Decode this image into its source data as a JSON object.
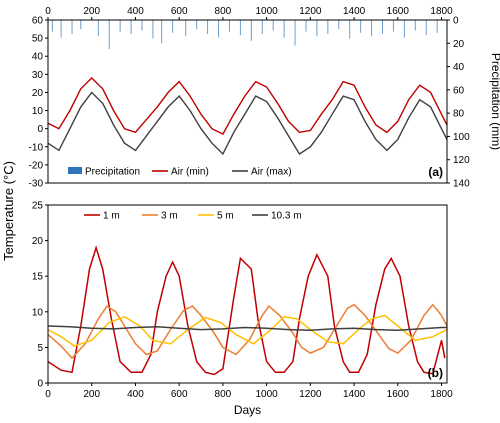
{
  "chart_data": [
    {
      "type": "line",
      "panel_label": "(a)",
      "xlim": [
        0,
        1825
      ],
      "ylim_left": [
        -30,
        60
      ],
      "ylim_right_inverted": [
        0,
        140
      ],
      "x_ticks": [
        0,
        200,
        400,
        600,
        800,
        1000,
        1200,
        1400,
        1600,
        1800
      ],
      "y_ticks_left": [
        -30,
        -20,
        -10,
        0,
        10,
        20,
        30,
        40,
        50,
        60
      ],
      "y_ticks_right": [
        0,
        20,
        40,
        60,
        80,
        100,
        120,
        140
      ],
      "ylabel_right": "Precipitation (mm)",
      "legend": [
        "Precipitation",
        "Air (min)",
        "Air (max)"
      ],
      "legend_position": "bottom-left",
      "series": [
        {
          "name": "Air (min)",
          "color": "#c00000",
          "x": [
            0,
            50,
            100,
            150,
            200,
            250,
            300,
            350,
            400,
            450,
            500,
            550,
            600,
            650,
            700,
            750,
            800,
            850,
            900,
            950,
            1000,
            1050,
            1100,
            1150,
            1200,
            1250,
            1300,
            1350,
            1400,
            1450,
            1500,
            1550,
            1600,
            1650,
            1700,
            1750,
            1800,
            1825
          ],
          "y": [
            3,
            0,
            10,
            22,
            28,
            22,
            10,
            0,
            -2,
            5,
            12,
            20,
            26,
            18,
            8,
            0,
            -3,
            8,
            18,
            26,
            23,
            14,
            4,
            -2,
            -1,
            8,
            16,
            26,
            24,
            12,
            2,
            -2,
            4,
            16,
            24,
            20,
            8,
            2
          ]
        },
        {
          "name": "Air (max)",
          "color": "#404040",
          "x": [
            0,
            50,
            100,
            150,
            200,
            250,
            300,
            350,
            400,
            450,
            500,
            550,
            600,
            650,
            700,
            750,
            800,
            850,
            900,
            950,
            1000,
            1050,
            1100,
            1150,
            1200,
            1250,
            1300,
            1350,
            1400,
            1450,
            1500,
            1550,
            1600,
            1650,
            1700,
            1750,
            1800,
            1825
          ],
          "y": [
            -8,
            -12,
            0,
            12,
            20,
            14,
            2,
            -8,
            -12,
            -4,
            4,
            12,
            18,
            10,
            0,
            -8,
            -14,
            -2,
            8,
            18,
            15,
            6,
            -4,
            -14,
            -10,
            -2,
            8,
            18,
            16,
            4,
            -6,
            -12,
            -6,
            6,
            16,
            12,
            0,
            -6
          ]
        },
        {
          "name": "Precipitation",
          "color": "#2e75b6",
          "type": "bar",
          "axis": "right",
          "x": [
            20,
            60,
            110,
            150,
            230,
            280,
            330,
            380,
            430,
            480,
            520,
            570,
            630,
            680,
            730,
            780,
            830,
            880,
            930,
            980,
            1030,
            1080,
            1130,
            1180,
            1230,
            1280,
            1330,
            1380,
            1430,
            1480,
            1530,
            1580,
            1630,
            1680,
            1730,
            1780
          ],
          "y": [
            10,
            15,
            12,
            8,
            14,
            25,
            10,
            12,
            9,
            16,
            20,
            11,
            14,
            8,
            12,
            15,
            10,
            13,
            18,
            12,
            9,
            15,
            22,
            10,
            14,
            12,
            8,
            16,
            11,
            14,
            12,
            10,
            15,
            9,
            13,
            11
          ]
        }
      ]
    },
    {
      "type": "line",
      "panel_label": "(b)",
      "xlim": [
        0,
        1825
      ],
      "ylim": [
        0,
        25
      ],
      "x_ticks": [
        0,
        200,
        400,
        600,
        800,
        1000,
        1200,
        1400,
        1600,
        1800
      ],
      "y_ticks": [
        0,
        5,
        10,
        15,
        20,
        25
      ],
      "xlabel": "Days",
      "legend": [
        "1 m",
        "3 m",
        "5 m",
        "10.3 m"
      ],
      "legend_position": "top-left",
      "series": [
        {
          "name": "1 m",
          "color": "#c00000",
          "x": [
            0,
            60,
            110,
            150,
            190,
            220,
            250,
            290,
            330,
            380,
            430,
            470,
            500,
            540,
            570,
            600,
            640,
            680,
            720,
            760,
            800,
            850,
            880,
            930,
            960,
            1000,
            1040,
            1080,
            1120,
            1150,
            1190,
            1230,
            1280,
            1310,
            1350,
            1380,
            1420,
            1460,
            1500,
            1540,
            1570,
            1610,
            1650,
            1690,
            1720,
            1760,
            1800,
            1815
          ],
          "y": [
            3,
            1.8,
            1.5,
            8,
            16,
            19,
            16,
            9,
            3,
            1.5,
            1.5,
            4,
            10,
            15,
            17,
            15,
            8,
            3,
            1.5,
            1.2,
            2,
            12,
            17.5,
            16,
            9,
            3,
            1.5,
            1.5,
            3,
            9,
            15,
            18,
            15,
            8,
            3,
            1.5,
            1.5,
            4,
            11,
            16,
            17.5,
            15,
            8,
            3,
            1.5,
            1.3,
            6,
            3.5
          ]
        },
        {
          "name": "3 m",
          "color": "#ed7d31",
          "x": [
            0,
            60,
            110,
            170,
            230,
            270,
            310,
            360,
            400,
            450,
            500,
            560,
            620,
            660,
            700,
            760,
            800,
            860,
            920,
            980,
            1010,
            1060,
            1120,
            1160,
            1200,
            1260,
            1320,
            1370,
            1400,
            1450,
            1520,
            1560,
            1600,
            1660,
            1720,
            1760,
            1800,
            1825
          ],
          "y": [
            6.8,
            5.2,
            3.5,
            5.5,
            9,
            10.8,
            10,
            7.5,
            5.5,
            4,
            4.5,
            7.5,
            10.2,
            10.8,
            9.5,
            7,
            5,
            4,
            6,
            9.5,
            10.8,
            9.5,
            7,
            5,
            4.2,
            5,
            8,
            10.5,
            11,
            9.5,
            6.5,
            4.8,
            4.2,
            6,
            9.5,
            11,
            9.5,
            8
          ]
        },
        {
          "name": "5 m",
          "color": "#ffc000",
          "x": [
            0,
            60,
            120,
            200,
            280,
            350,
            420,
            480,
            560,
            640,
            720,
            790,
            860,
            940,
            1020,
            1080,
            1140,
            1200,
            1280,
            1350,
            1420,
            1480,
            1540,
            1600,
            1680,
            1760,
            1825
          ],
          "y": [
            7.5,
            6.5,
            5.2,
            6,
            8.5,
            9.3,
            8,
            6,
            5.5,
            7.5,
            9.2,
            8.5,
            6.8,
            5.5,
            7.5,
            9.3,
            9,
            7.5,
            5.8,
            5.5,
            7.5,
            9,
            9.5,
            8,
            6,
            6.5,
            7.5
          ]
        },
        {
          "name": "10.3 m",
          "color": "#404040",
          "x": [
            0,
            100,
            200,
            300,
            400,
            500,
            600,
            700,
            800,
            900,
            1000,
            1100,
            1200,
            1300,
            1400,
            1500,
            1600,
            1700,
            1800,
            1825
          ],
          "y": [
            8,
            7.9,
            7.7,
            7.6,
            7.8,
            7.9,
            7.7,
            7.5,
            7.6,
            7.8,
            7.7,
            7.5,
            7.4,
            7.6,
            7.7,
            7.5,
            7.4,
            7.6,
            7.8,
            7.8
          ]
        }
      ]
    }
  ],
  "shared": {
    "ylabel_left": "Temperature (°C)"
  }
}
